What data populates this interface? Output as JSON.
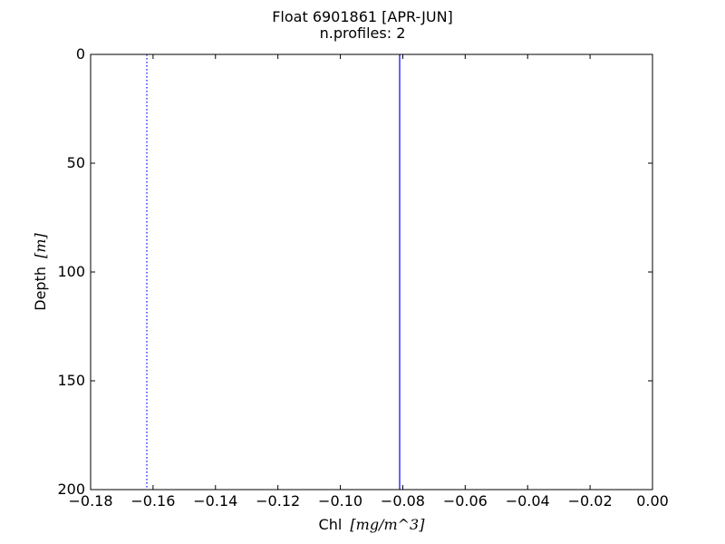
{
  "chart_data": {
    "type": "line",
    "title": "Float 6901861 [APR-JUN]",
    "subtitle": "n.profiles: 2",
    "xlabel": "Chl",
    "xlabel_unit": "[mg/m^3]",
    "ylabel": "Depth",
    "ylabel_unit": "[m]",
    "xlim": [
      -0.18,
      0.0
    ],
    "ylim": [
      200,
      0
    ],
    "y_inverted": true,
    "grid": false,
    "x_ticks": [
      -0.18,
      -0.16,
      -0.14,
      -0.12,
      -0.1,
      -0.08,
      -0.06,
      -0.04,
      -0.02,
      0.0
    ],
    "x_tick_labels": [
      "−0.18",
      "−0.16",
      "−0.14",
      "−0.12",
      "−0.10",
      "−0.08",
      "−0.06",
      "−0.04",
      "−0.02",
      "0.00"
    ],
    "y_ticks": [
      0,
      50,
      100,
      150,
      200
    ],
    "y_tick_labels": [
      "0",
      "50",
      "100",
      "150",
      "200"
    ],
    "series": [
      {
        "style": "solid",
        "color": "#0000ff",
        "x": [
          -0.081,
          -0.081
        ],
        "y": [
          0,
          200
        ]
      },
      {
        "style": "dotted",
        "color": "#0000ff",
        "x": [
          -0.162,
          -0.162
        ],
        "y": [
          0,
          200
        ]
      }
    ]
  }
}
